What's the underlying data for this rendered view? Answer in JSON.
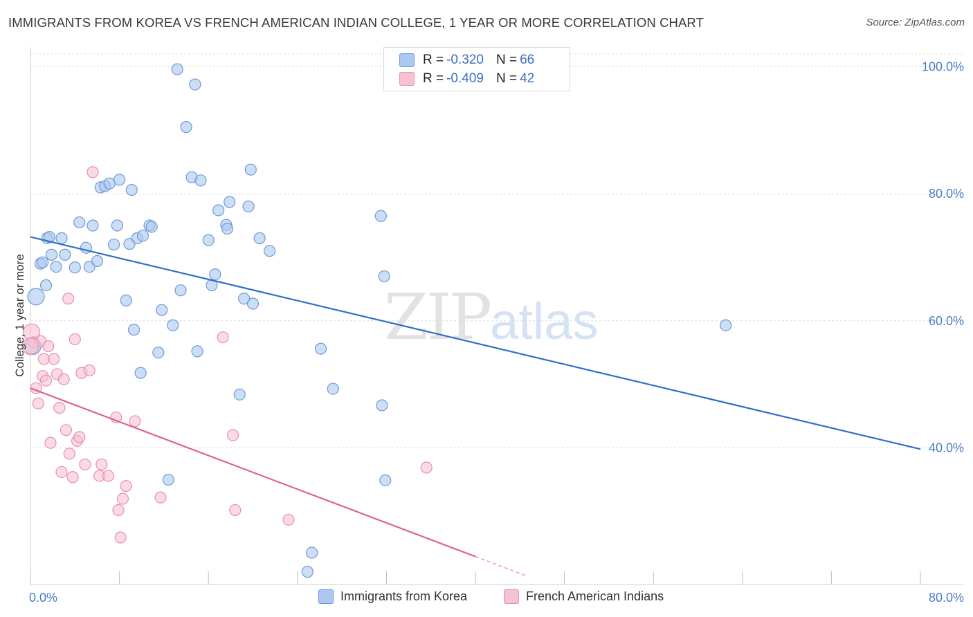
{
  "header": {
    "title": "IMMIGRANTS FROM KOREA VS FRENCH AMERICAN INDIAN COLLEGE, 1 YEAR OR MORE CORRELATION CHART",
    "source": "Source: ZipAtlas.com"
  },
  "legend": {
    "korea": {
      "r_label": "R =",
      "r_value": "-0.320",
      "n_label": "N =",
      "n_value": "66"
    },
    "french": {
      "r_label": "R =",
      "r_value": "-0.409",
      "n_label": "N =",
      "n_value": "42"
    }
  },
  "watermark": {
    "zip": "ZIP",
    "atlas": "atlas"
  },
  "colors": {
    "korea_fill": "#aac8f0",
    "korea_stroke": "#6f9ad6",
    "korea_line": "#2f6fc8",
    "french_fill": "#f6c1d2",
    "french_stroke": "#e890ad",
    "french_line": "#e0628f",
    "tick_text": "#4a7cc9",
    "grid": "#dcdcdc"
  },
  "chart_data": {
    "type": "scatter",
    "xlabel": "",
    "ylabel": "College, 1 year or more",
    "xlim": [
      0,
      80
    ],
    "ylim": [
      18.5,
      102
    ],
    "x_tick_labels": [
      "0.0%",
      "80.0%"
    ],
    "y_ticks": [
      40,
      60,
      80,
      100
    ],
    "y_tick_labels": [
      "40.0%",
      "60.0%",
      "80.0%",
      "100.0%"
    ],
    "grid": true,
    "legend_position": "bottom-center",
    "series": [
      {
        "name": "Immigrants from Korea",
        "color": "#aac8f0",
        "trend": {
          "x": [
            0,
            80
          ],
          "y": [
            73.2,
            39.8
          ]
        },
        "points": [
          [
            0.2,
            56.0
          ],
          [
            0.5,
            63.8
          ],
          [
            0.9,
            69.0
          ],
          [
            1.1,
            69.2
          ],
          [
            1.4,
            65.6
          ],
          [
            1.5,
            73.0
          ],
          [
            1.7,
            73.2
          ],
          [
            1.9,
            70.4
          ],
          [
            2.3,
            68.5
          ],
          [
            2.8,
            73.0
          ],
          [
            3.1,
            70.4
          ],
          [
            4.0,
            68.4
          ],
          [
            4.4,
            75.5
          ],
          [
            5.0,
            71.5
          ],
          [
            5.3,
            68.5
          ],
          [
            5.6,
            75.0
          ],
          [
            6.0,
            69.4
          ],
          [
            6.3,
            81.0
          ],
          [
            6.7,
            81.2
          ],
          [
            7.1,
            81.6
          ],
          [
            7.5,
            72.0
          ],
          [
            7.8,
            75.0
          ],
          [
            8.0,
            82.2
          ],
          [
            8.6,
            63.2
          ],
          [
            8.9,
            72.1
          ],
          [
            9.1,
            80.6
          ],
          [
            9.3,
            58.6
          ],
          [
            9.6,
            73.0
          ],
          [
            9.9,
            51.8
          ],
          [
            10.1,
            73.4
          ],
          [
            10.7,
            75.0
          ],
          [
            10.9,
            74.8
          ],
          [
            11.5,
            55.0
          ],
          [
            11.8,
            61.7
          ],
          [
            12.4,
            35.0
          ],
          [
            12.8,
            59.3
          ],
          [
            13.2,
            99.6
          ],
          [
            13.5,
            64.8
          ],
          [
            14.0,
            90.5
          ],
          [
            14.5,
            82.6
          ],
          [
            14.8,
            97.2
          ],
          [
            15.0,
            55.2
          ],
          [
            15.3,
            82.1
          ],
          [
            16.0,
            72.7
          ],
          [
            16.3,
            65.6
          ],
          [
            16.6,
            67.3
          ],
          [
            16.9,
            77.4
          ],
          [
            17.6,
            75.1
          ],
          [
            17.7,
            74.5
          ],
          [
            17.9,
            78.7
          ],
          [
            18.8,
            48.4
          ],
          [
            19.2,
            63.5
          ],
          [
            19.6,
            78.0
          ],
          [
            19.8,
            83.8
          ],
          [
            20.0,
            62.7
          ],
          [
            20.6,
            73.0
          ],
          [
            21.5,
            71.0
          ],
          [
            24.9,
            20.5
          ],
          [
            25.3,
            23.5
          ],
          [
            26.1,
            55.6
          ],
          [
            27.2,
            49.3
          ],
          [
            31.9,
            34.9
          ],
          [
            31.6,
            46.7
          ],
          [
            31.8,
            67.0
          ],
          [
            31.5,
            76.5
          ],
          [
            62.5,
            59.3
          ]
        ]
      },
      {
        "name": "French American Indians",
        "color": "#f6c1d2",
        "trend": {
          "x": [
            0,
            40
          ],
          "y": [
            49.4,
            22.9
          ]
        },
        "points": [
          [
            0.1,
            58.2
          ],
          [
            0.3,
            56.6
          ],
          [
            0.5,
            49.4
          ],
          [
            0.7,
            47.0
          ],
          [
            0.9,
            56.8
          ],
          [
            1.1,
            51.3
          ],
          [
            1.2,
            54.0
          ],
          [
            1.4,
            50.6
          ],
          [
            1.6,
            56.0
          ],
          [
            1.8,
            40.8
          ],
          [
            2.1,
            54.0
          ],
          [
            2.4,
            51.6
          ],
          [
            2.6,
            46.3
          ],
          [
            2.8,
            36.2
          ],
          [
            3.0,
            50.8
          ],
          [
            3.2,
            42.8
          ],
          [
            3.4,
            63.5
          ],
          [
            3.5,
            39.1
          ],
          [
            3.8,
            35.4
          ],
          [
            4.0,
            57.1
          ],
          [
            4.2,
            41.1
          ],
          [
            4.4,
            41.7
          ],
          [
            4.6,
            51.8
          ],
          [
            4.9,
            37.4
          ],
          [
            5.3,
            52.2
          ],
          [
            5.6,
            83.4
          ],
          [
            6.2,
            35.6
          ],
          [
            6.4,
            37.4
          ],
          [
            7.0,
            35.6
          ],
          [
            7.7,
            44.8
          ],
          [
            7.9,
            30.2
          ],
          [
            8.1,
            25.9
          ],
          [
            8.3,
            32.0
          ],
          [
            8.6,
            34.0
          ],
          [
            9.4,
            44.2
          ],
          [
            11.7,
            32.2
          ],
          [
            17.3,
            57.4
          ],
          [
            18.2,
            42.0
          ],
          [
            18.4,
            30.2
          ],
          [
            23.2,
            28.7
          ],
          [
            35.6,
            36.9
          ],
          [
            0.0,
            56.0
          ]
        ]
      }
    ]
  },
  "bottom_legend": {
    "korea": "Immigrants from Korea",
    "french": "French American Indians"
  }
}
